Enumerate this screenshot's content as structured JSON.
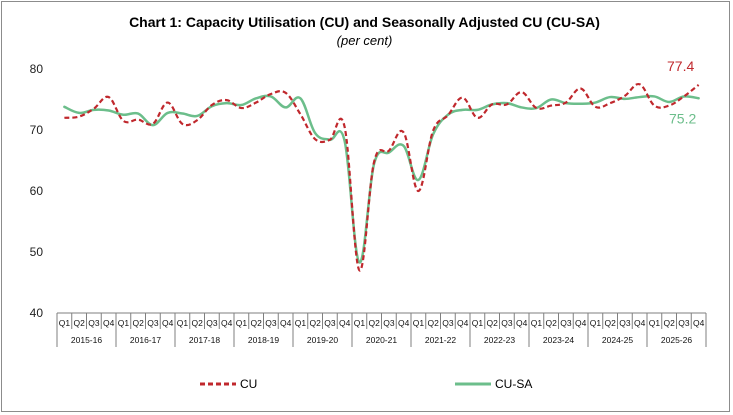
{
  "chart_data": {
    "type": "line",
    "title": "Chart 1: Capacity Utilisation (CU) and Seasonally Adjusted CU (CU-SA)",
    "subtitle": "(per cent)",
    "ylim": [
      40,
      80
    ],
    "yticks": [
      "40",
      "50",
      "60",
      "70",
      "80"
    ],
    "quarter_labels": [
      "Q1",
      "Q2",
      "Q3",
      "Q4"
    ],
    "years": [
      "2015-16",
      "2016-17",
      "2017-18",
      "2018-19",
      "2019-20",
      "2020-21",
      "2021-22",
      "2022-23",
      "2023-24",
      "2024-25",
      "2025-26"
    ],
    "series": [
      {
        "name": "CU",
        "color": "#c0282d",
        "style": "dashed",
        "values": [
          72.0,
          72.2,
          73.5,
          75.4,
          71.5,
          71.7,
          71.0,
          74.5,
          71.0,
          71.6,
          74.1,
          74.9,
          73.6,
          74.5,
          75.9,
          76.1,
          72.6,
          68.5,
          68.4,
          70.5,
          47.0,
          64.8,
          66.6,
          69.6,
          60.0,
          69.9,
          72.4,
          75.3,
          72.0,
          74.2,
          74.2,
          76.2,
          73.6,
          74.0,
          74.5,
          76.8,
          73.8,
          74.4,
          75.6,
          77.5,
          74.0,
          74.0,
          75.5,
          77.4
        ]
      },
      {
        "name": "CU-SA",
        "color": "#6cbe8b",
        "style": "solid",
        "values": [
          73.8,
          72.8,
          73.3,
          73.2,
          72.5,
          72.7,
          70.8,
          72.8,
          72.7,
          72.3,
          73.9,
          74.4,
          74.1,
          75.2,
          75.5,
          73.7,
          75.2,
          69.5,
          68.4,
          68.2,
          48.3,
          64.5,
          66.3,
          67.4,
          61.8,
          69.3,
          72.5,
          73.3,
          73.3,
          74.2,
          74.4,
          73.7,
          73.6,
          75.0,
          74.4,
          74.3,
          74.5,
          75.4,
          75.1,
          75.4,
          75.5,
          74.6,
          75.5,
          75.2
        ]
      }
    ],
    "end_labels": [
      {
        "series": "CU",
        "text": "77.4",
        "color": "#c0282d"
      },
      {
        "series": "CU-SA",
        "text": "75.2",
        "color": "#6cbe8b"
      }
    ],
    "legend": {
      "placement": "bottom",
      "entries": [
        "CU",
        "CU-SA"
      ]
    },
    "grid": false
  }
}
